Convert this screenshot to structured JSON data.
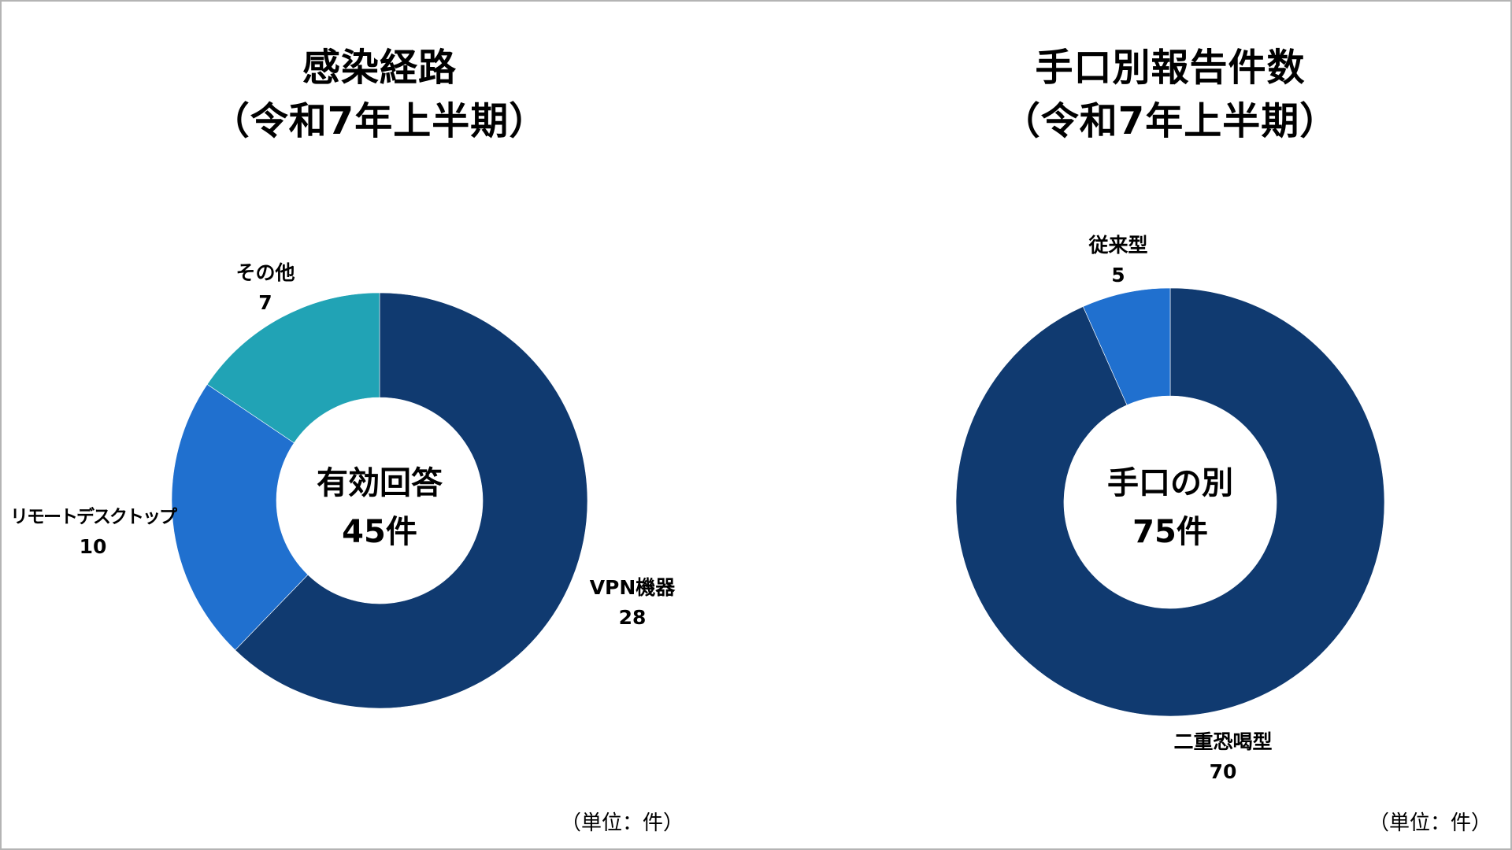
{
  "charts": [
    {
      "title_line1": "感染経路",
      "title_line2": "（令和7年上半期）",
      "center_line1": "有効回答",
      "center_line2": "45件",
      "unit": "（単位：件）",
      "slices": [
        {
          "label": "VPN機器",
          "value": 28,
          "color": "#103a70"
        },
        {
          "label": "リモートデスクトップ",
          "value": 10,
          "color": "#2070cf"
        },
        {
          "label": "その他",
          "value": 7,
          "color": "#21a3b5"
        }
      ]
    },
    {
      "title_line1": "手口別報告件数",
      "title_line2": "（令和7年上半期）",
      "center_line1": "手口の別",
      "center_line2": "75件",
      "unit": "（単位：件）",
      "slices": [
        {
          "label": "二重恐喝型",
          "value": 70,
          "color": "#103a70"
        },
        {
          "label": "従来型",
          "value": 5,
          "color": "#2070cf"
        }
      ]
    }
  ],
  "chart_data": [
    {
      "type": "pie",
      "title": "感染経路（令和7年上半期）",
      "subtitle": "有効回答 45件",
      "categories": [
        "VPN機器",
        "リモートデスクトップ",
        "その他"
      ],
      "values": [
        28,
        10,
        7
      ],
      "total": 45,
      "unit": "件",
      "colors": [
        "#103a70",
        "#2070cf",
        "#21a3b5"
      ],
      "donut": true
    },
    {
      "type": "pie",
      "title": "手口別報告件数（令和7年上半期）",
      "subtitle": "手口の別 75件",
      "categories": [
        "二重恐喝型",
        "従来型"
      ],
      "values": [
        70,
        5
      ],
      "total": 75,
      "unit": "件",
      "colors": [
        "#103a70",
        "#2070cf"
      ],
      "donut": true
    }
  ]
}
